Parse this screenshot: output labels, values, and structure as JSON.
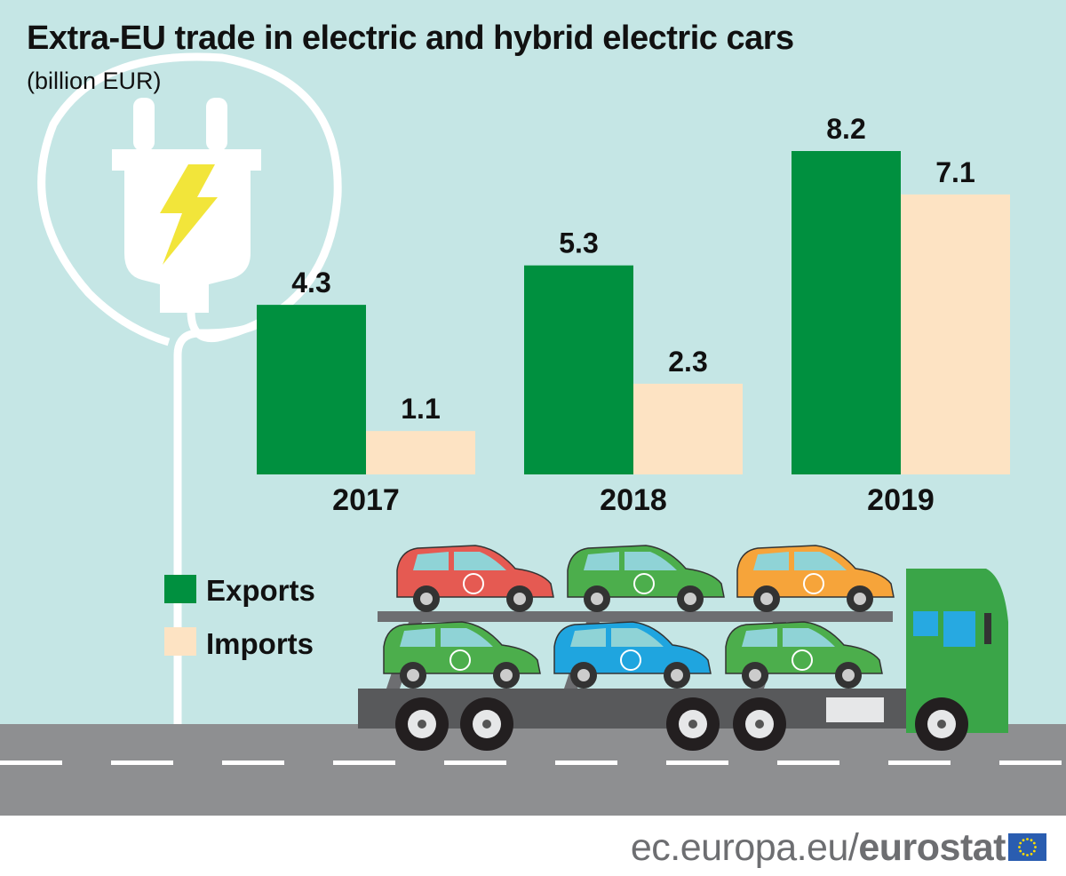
{
  "colors": {
    "background": "#c5e6e5",
    "exports": "#00903f",
    "imports": "#fde3c3",
    "road": "#8e8f91",
    "text": "#111111"
  },
  "chart_data": {
    "type": "bar",
    "title": "Extra-EU trade in electric and hybrid electric cars",
    "subtitle": "(billion EUR)",
    "categories": [
      "2017",
      "2018",
      "2019"
    ],
    "series": [
      {
        "name": "Exports",
        "values": [
          4.3,
          5.3,
          8.2
        ],
        "labels": [
          "4.3",
          "5.3",
          "8.2"
        ]
      },
      {
        "name": "Imports",
        "values": [
          1.1,
          2.3,
          7.1
        ],
        "labels": [
          "1.1",
          "2.3",
          "7.1"
        ]
      }
    ],
    "ylim": [
      0,
      9
    ],
    "grid": false,
    "legend": "bottom-left"
  },
  "footer": {
    "site": "ec.europa.eu/",
    "brand": "eurostat"
  }
}
